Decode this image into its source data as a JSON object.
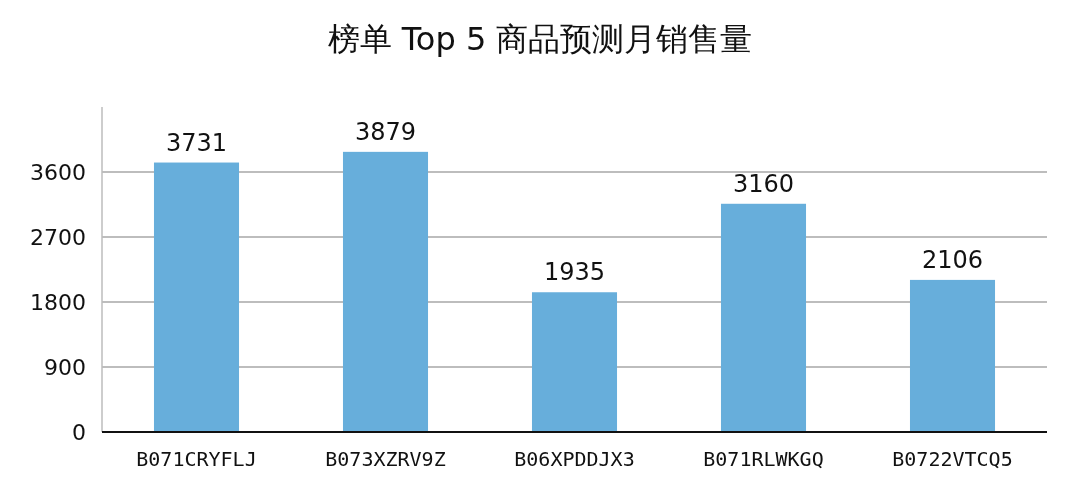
{
  "chart_data": {
    "type": "bar",
    "title": "榜单 Top 5 商品预测月销售量",
    "categories": [
      "B071CRYFLJ",
      "B073XZRV9Z",
      "B06XPDDJX3",
      "B071RLWKGQ",
      "B0722VTCQ5"
    ],
    "values": [
      3731,
      3879,
      1935,
      3160,
      2106
    ],
    "color": "#67aedb",
    "ylim": [
      0,
      4500
    ],
    "yticks": [
      0,
      900,
      1800,
      2700,
      3600
    ],
    "grid": "y",
    "data_labels": true
  }
}
